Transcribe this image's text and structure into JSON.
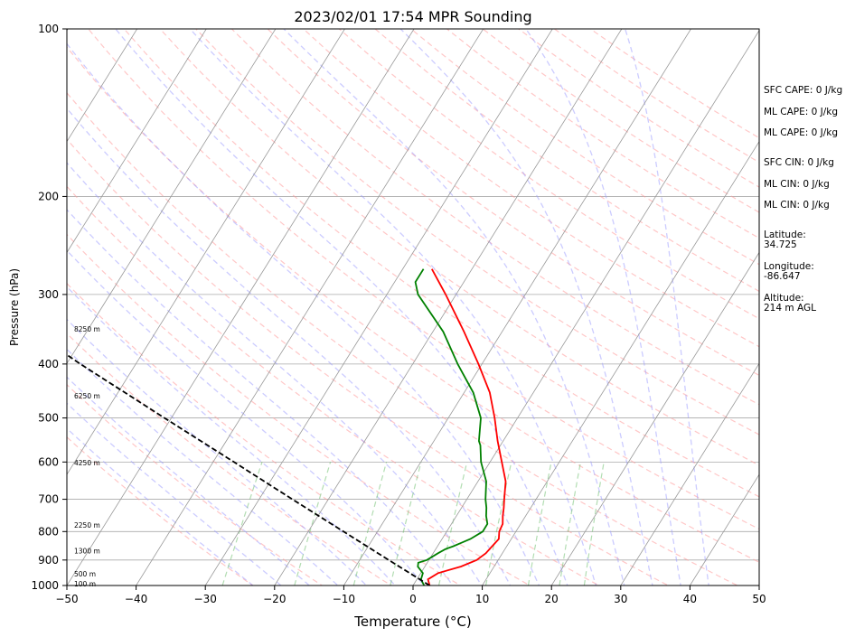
{
  "chart_data": {
    "type": "line",
    "title": "2023/02/01 17:54 MPR Sounding",
    "xlabel": "Temperature (°C)",
    "ylabel": "Pressure (hPa)",
    "xlim": [
      -50,
      50
    ],
    "ylim": [
      1000,
      100
    ],
    "y_scale": "log",
    "skew": "skew-T log-p",
    "x_ticks": [
      "−50",
      "−40",
      "−30",
      "−20",
      "−10",
      "0",
      "10",
      "20",
      "30",
      "40",
      "50"
    ],
    "y_ticks": [
      1000,
      900,
      800,
      700,
      600,
      500,
      400,
      300,
      200,
      100
    ],
    "grid": true,
    "series": [
      {
        "kind": "temperature",
        "color": "#ff0000",
        "points": [
          [
            1000,
            2.4
          ],
          [
            975,
            1.6
          ],
          [
            950,
            2.5
          ],
          [
            925,
            5.2
          ],
          [
            900,
            6.9
          ],
          [
            875,
            7.6
          ],
          [
            850,
            7.9
          ],
          [
            825,
            8.2
          ],
          [
            800,
            7.6
          ],
          [
            775,
            7.4
          ],
          [
            750,
            6.7
          ],
          [
            725,
            6.1
          ],
          [
            700,
            5.4
          ],
          [
            650,
            4.0
          ],
          [
            600,
            1.7
          ],
          [
            550,
            -0.8
          ],
          [
            500,
            -3.3
          ],
          [
            450,
            -6.3
          ],
          [
            400,
            -10.5
          ],
          [
            350,
            -15.5
          ],
          [
            300,
            -21.5
          ],
          [
            270,
            -25.8
          ]
        ]
      },
      {
        "kind": "dewpoint",
        "color": "#008000",
        "points": [
          [
            1000,
            1.6
          ],
          [
            975,
            0.6
          ],
          [
            950,
            0.3
          ],
          [
            925,
            -1.0
          ],
          [
            910,
            -1.3
          ],
          [
            900,
            -0.3
          ],
          [
            875,
            0.7
          ],
          [
            860,
            1.4
          ],
          [
            850,
            2.3
          ],
          [
            825,
            4.1
          ],
          [
            800,
            5.2
          ],
          [
            775,
            5.2
          ],
          [
            750,
            4.3
          ],
          [
            725,
            3.6
          ],
          [
            700,
            2.7
          ],
          [
            650,
            1.2
          ],
          [
            600,
            -1.3
          ],
          [
            560,
            -2.9
          ],
          [
            550,
            -3.5
          ],
          [
            500,
            -5.3
          ],
          [
            450,
            -8.7
          ],
          [
            400,
            -13.5
          ],
          [
            350,
            -18.5
          ],
          [
            300,
            -25.5
          ],
          [
            285,
            -27.0
          ],
          [
            270,
            -27.0
          ]
        ]
      },
      {
        "kind": "parcel",
        "color": "#000000",
        "style": "dashed",
        "points": [
          [
            1000,
            2.4
          ],
          [
            900,
            -5.8
          ],
          [
            800,
            -14.9
          ],
          [
            700,
            -25.2
          ],
          [
            600,
            -37.0
          ],
          [
            500,
            -51.0
          ],
          [
            400,
            -68.0
          ],
          [
            300,
            -89.0
          ],
          [
            267,
            -97.0
          ]
        ]
      }
    ],
    "height_labels": [
      {
        "p": 993,
        "label": "100 m"
      },
      {
        "p": 953,
        "label": "500 m"
      },
      {
        "p": 866,
        "label": "1300 m"
      },
      {
        "p": 779,
        "label": "2250 m"
      },
      {
        "p": 602,
        "label": "4250 m"
      },
      {
        "p": 456,
        "label": "6250 m"
      },
      {
        "p": 346,
        "label": "8250 m"
      }
    ],
    "stats": [
      "SFC CAPE: 0 J/kg",
      "ML CAPE: 0 J/kg",
      "ML CAPE: 0 J/kg",
      "SFC CIN: 0 J/kg",
      "ML CIN: 0 J/kg",
      "ML CIN: 0 J/kg"
    ],
    "location": {
      "latitude_label": "Latitude:",
      "latitude": "34.725",
      "longitude_label": "Longitude:",
      "longitude": "-86.647",
      "altitude_label": "Altitude:",
      "altitude": "214 m AGL"
    },
    "colors": {
      "isotherm": "#999999",
      "dry_adiabat": "#ff9999",
      "moist_adiabat": "#9999ff",
      "mixing_ratio": "#66bb66",
      "isobar": "#aaaaaa"
    }
  }
}
